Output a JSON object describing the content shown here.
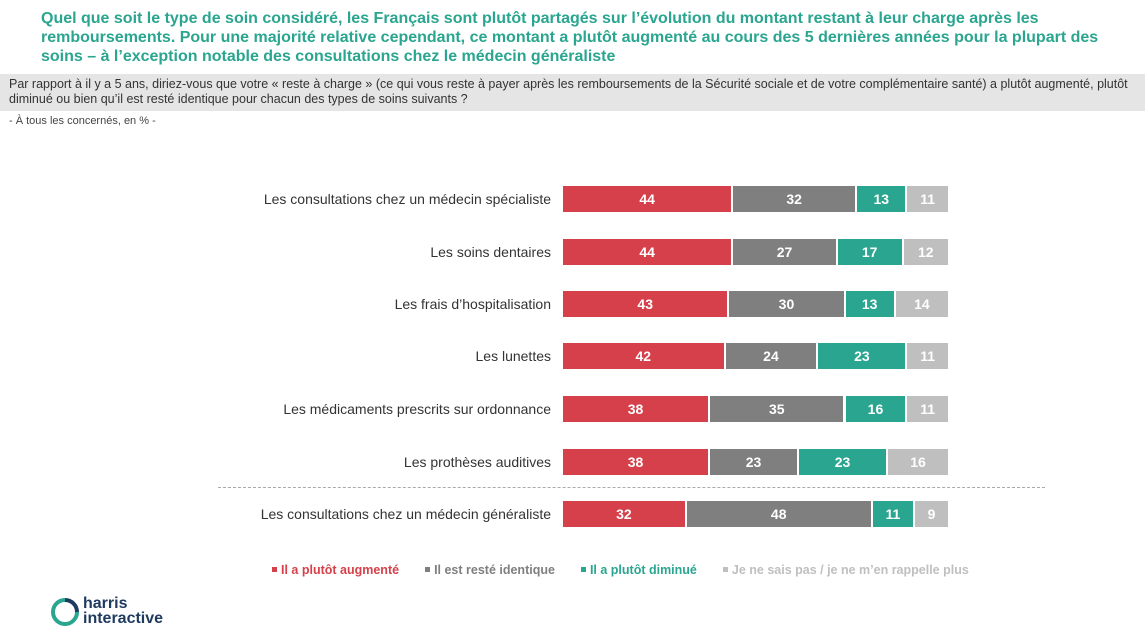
{
  "headline": "Quel que soit le type de soin considéré, les Français sont plutôt partagés sur l’évolution du montant restant à leur charge après les remboursements. Pour une majorité relative cependant, ce montant a plutôt augmenté au cours des 5 dernières années pour la plupart des soins – à l’exception notable des consultations chez le médecin généraliste",
  "question": "Par rapport à il y a 5 ans, diriez-vous que votre « reste à charge » (ce qui vous reste à payer après les remboursements de la Sécurité sociale et de votre complémentaire santé) a plutôt augmenté, plutôt diminué ou bien qu’il est resté identique pour chacun des types de soins suivants ?",
  "base": "- À tous les concernés, en % -",
  "colors": {
    "augmente": "#d6404a",
    "identique": "#7f7f7f",
    "diminue": "#2aa58f",
    "nsp": "#bfbfbf"
  },
  "chart_data": {
    "type": "bar",
    "orientation": "horizontal",
    "stacked": true,
    "normalized": true,
    "categories": [
      "Les consultations chez un médecin spécialiste",
      "Les soins dentaires",
      "Les frais d’hospitalisation",
      "Les lunettes",
      "Les médicaments prescrits sur ordonnance",
      "Les prothèses auditives",
      "Les consultations chez un médecin généraliste"
    ],
    "series": [
      {
        "name": "Il a plutôt augmenté",
        "values": [
          44,
          44,
          43,
          42,
          38,
          38,
          32
        ]
      },
      {
        "name": "Il est resté identique",
        "values": [
          32,
          27,
          30,
          24,
          35,
          23,
          48
        ]
      },
      {
        "name": "Il a plutôt diminué",
        "values": [
          13,
          17,
          13,
          23,
          16,
          23,
          11
        ]
      },
      {
        "name": "Je ne sais pas / je ne m’en rappelle plus",
        "values": [
          11,
          12,
          14,
          11,
          11,
          16,
          9
        ]
      }
    ],
    "legend": "bottom"
  },
  "logo": {
    "line1": "harris",
    "line2": "interactive"
  }
}
